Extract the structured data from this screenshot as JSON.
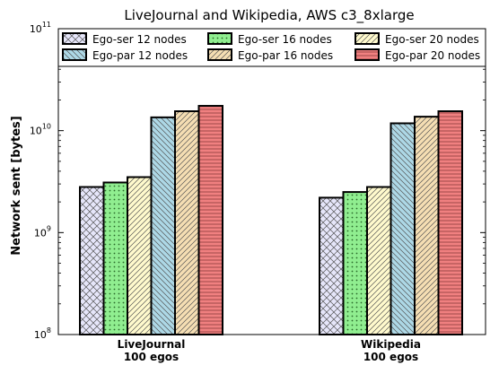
{
  "chart_data": {
    "type": "bar",
    "title": "LiveJournal and Wikipedia, AWS c3_8xlarge",
    "ylabel": "Network sent [bytes]",
    "xlabel": "",
    "y_scale": "log",
    "ylim": [
      100000000,
      100000000000
    ],
    "y_ticks": [
      {
        "value": 100000000,
        "base": "10",
        "exp": "8"
      },
      {
        "value": 1000000000,
        "base": "10",
        "exp": "9"
      },
      {
        "value": 10000000000,
        "base": "10",
        "exp": "10"
      },
      {
        "value": 100000000000,
        "base": "10",
        "exp": "11"
      }
    ],
    "categories": [
      {
        "line1": "LiveJournal",
        "line2": "100 egos"
      },
      {
        "line1": "Wikipedia",
        "line2": "100 egos"
      }
    ],
    "legend_position": "top",
    "series": [
      {
        "name": "Ego-ser 12 nodes",
        "color": "#e6e6fa",
        "hatch": "cross",
        "values": [
          2800000000,
          2200000000
        ]
      },
      {
        "name": "Ego-ser 16 nodes",
        "color": "#90ee90",
        "hatch": "dots",
        "values": [
          3100000000,
          2500000000
        ]
      },
      {
        "name": "Ego-ser 20 nodes",
        "color": "#fffacd",
        "hatch": "diag-right",
        "values": [
          3500000000,
          2800000000
        ]
      },
      {
        "name": "Ego-par 12 nodes",
        "color": "#add8e6",
        "hatch": "diag-left",
        "values": [
          13500000000,
          11800000000
        ]
      },
      {
        "name": "Ego-par 16 nodes",
        "color": "#f5deb3",
        "hatch": "diag-right",
        "values": [
          15500000000,
          13700000000
        ]
      },
      {
        "name": "Ego-par 20 nodes",
        "color": "#f08080",
        "hatch": "horizontal",
        "values": [
          17500000000,
          15500000000
        ]
      }
    ]
  }
}
